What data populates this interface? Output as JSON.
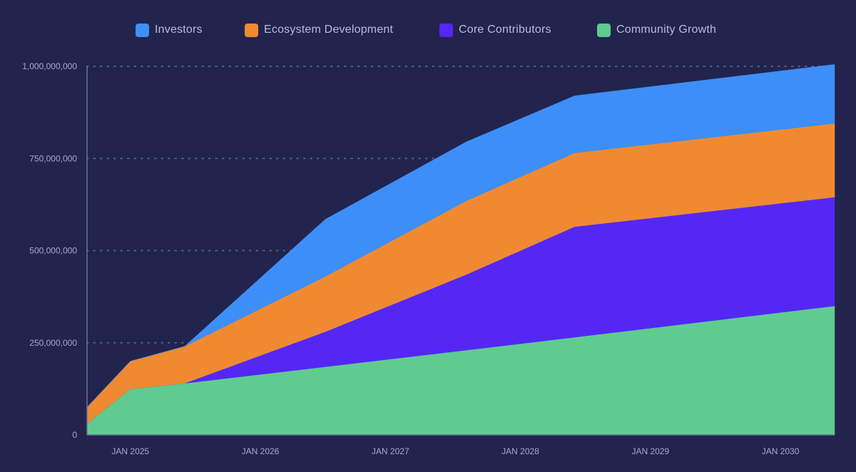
{
  "colors": {
    "background": "#22244d",
    "grid": "#5b5e8c",
    "axis": "#6d70a0",
    "text": "#a7a9c8"
  },
  "chart_data": {
    "type": "area",
    "stacked": true,
    "x": [
      "2024-09",
      "2025-01",
      "2025-06",
      "2026-07",
      "2027-08",
      "2028-06",
      "2030-06"
    ],
    "xticks": [
      "JAN 2025",
      "JAN 2026",
      "JAN 2027",
      "JAN 2028",
      "JAN 2029",
      "JAN 2030"
    ],
    "yticks": [
      "1,000,000,000",
      "750,000,000",
      "500,000,000",
      "250,000,000",
      "0"
    ],
    "ylim": [
      0,
      1000000000
    ],
    "grid": "horizontal dotted",
    "legend_position": "top",
    "series": [
      {
        "name": "Community Growth",
        "color": "#5fcb91",
        "values": [
          30000000,
          125000000,
          140000000,
          185000000,
          230000000,
          265000000,
          350000000
        ]
      },
      {
        "name": "Core Contributors",
        "color": "#5527f5",
        "values": [
          0,
          0,
          0,
          95000000,
          205000000,
          300000000,
          295000000
        ]
      },
      {
        "name": "Ecosystem Development",
        "color": "#ef8a33",
        "values": [
          45000000,
          75000000,
          100000000,
          150000000,
          200000000,
          200000000,
          200000000
        ]
      },
      {
        "name": "Investors",
        "color": "#3e8ef7",
        "values": [
          0,
          0,
          0,
          155000000,
          160000000,
          155000000,
          160000000
        ]
      }
    ],
    "legend": [
      {
        "name": "Investors",
        "color": "#3e8ef7"
      },
      {
        "name": "Ecosystem Development",
        "color": "#ef8a33"
      },
      {
        "name": "Core Contributors",
        "color": "#5527f5"
      },
      {
        "name": "Community Growth",
        "color": "#5fcb91"
      }
    ]
  }
}
